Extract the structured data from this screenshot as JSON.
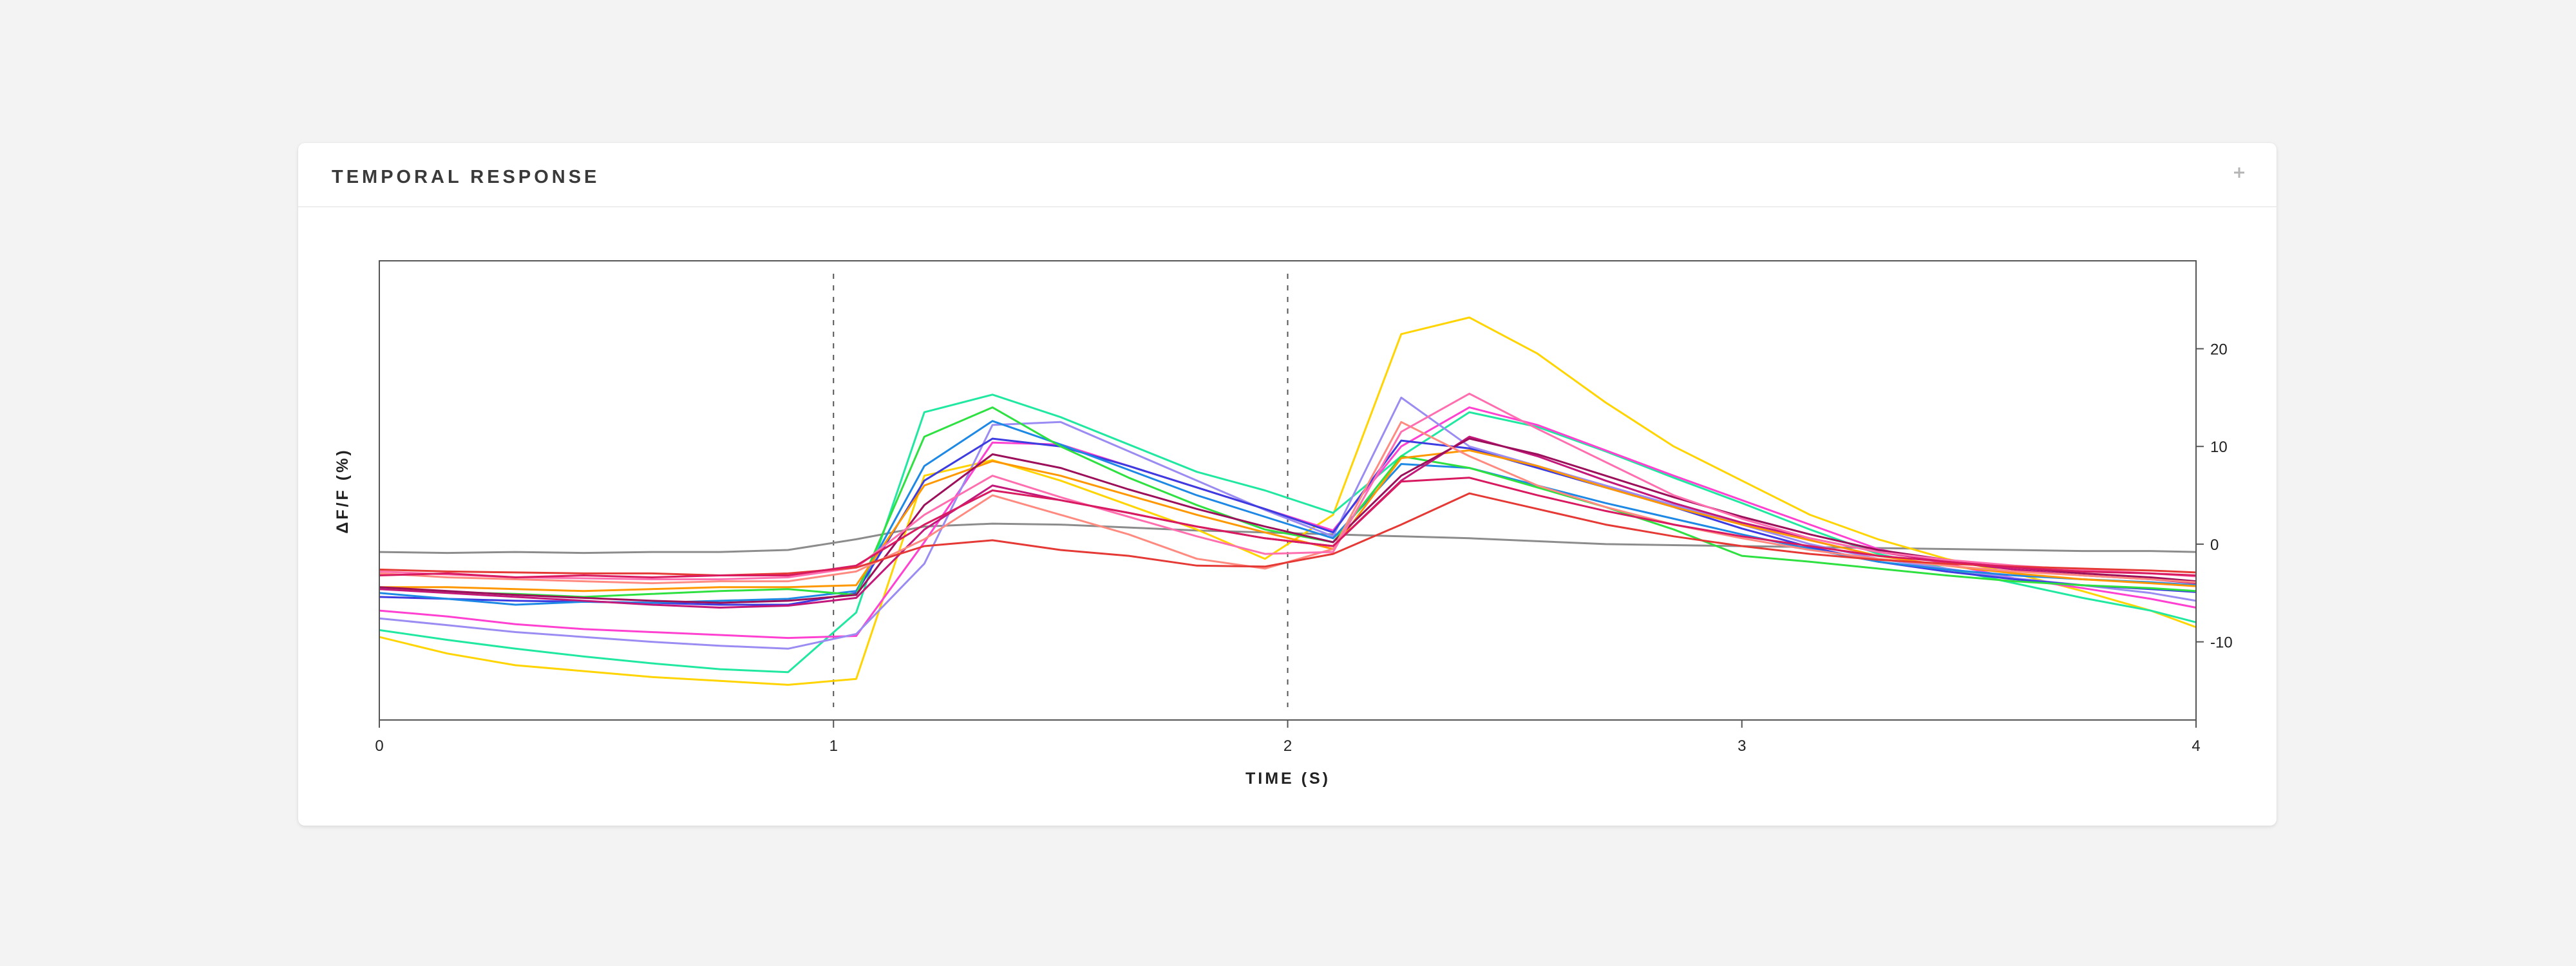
{
  "panel": {
    "title": "TEMPORAL RESPONSE",
    "expand_icon": "plus-icon"
  },
  "chart_data": {
    "type": "line",
    "xlabel": "TIME (S)",
    "ylabel": "ΔF/F (%)",
    "xlim": [
      0,
      4
    ],
    "ylim": [
      -18,
      29
    ],
    "x_ticks": [
      0,
      1,
      2,
      3,
      4
    ],
    "y_ticks": [
      -10,
      0,
      10,
      20
    ],
    "y_axis_side": "right",
    "grid": false,
    "stimulus_markers": [
      1,
      2
    ],
    "x": [
      0,
      0.15,
      0.3,
      0.45,
      0.6,
      0.75,
      0.9,
      1.05,
      1.2,
      1.35,
      1.5,
      1.65,
      1.8,
      1.95,
      2.1,
      2.25,
      2.4,
      2.55,
      2.7,
      2.85,
      3.0,
      3.15,
      3.3,
      3.45,
      3.6,
      3.75,
      3.9,
      4.0
    ],
    "series": [
      {
        "color": "#8c8c8c",
        "values": [
          -0.8,
          -0.9,
          -0.8,
          -0.9,
          -0.8,
          -0.8,
          -0.6,
          0.5,
          1.8,
          2.1,
          2.0,
          1.7,
          1.4,
          1.2,
          1.0,
          0.8,
          0.6,
          0.3,
          0.0,
          -0.1,
          -0.2,
          -0.3,
          -0.4,
          -0.5,
          -0.6,
          -0.7,
          -0.7,
          -0.8
        ]
      },
      {
        "color": "#ffd400",
        "values": [
          -9.5,
          -11.2,
          -12.4,
          -13.0,
          -13.6,
          -14.0,
          -14.4,
          -13.8,
          7.0,
          8.6,
          6.5,
          4.0,
          1.5,
          -1.5,
          3.0,
          21.5,
          23.2,
          19.5,
          14.5,
          10.0,
          6.5,
          3.0,
          0.5,
          -1.5,
          -3.0,
          -4.8,
          -6.8,
          -8.5
        ]
      },
      {
        "color": "#20e8a0",
        "values": [
          -8.8,
          -9.8,
          -10.7,
          -11.5,
          -12.2,
          -12.8,
          -13.1,
          -7.0,
          13.5,
          15.3,
          13.0,
          10.2,
          7.4,
          5.5,
          3.2,
          9.0,
          13.5,
          12.0,
          9.5,
          6.8,
          4.2,
          1.5,
          -1.0,
          -2.5,
          -4.0,
          -5.5,
          -6.8,
          -8.0
        ]
      },
      {
        "color": "#ff40d0",
        "values": [
          -6.8,
          -7.4,
          -8.2,
          -8.7,
          -9.0,
          -9.3,
          -9.6,
          -9.4,
          0.2,
          10.4,
          10.2,
          8.0,
          5.8,
          3.6,
          1.4,
          10.0,
          14.0,
          12.2,
          9.6,
          7.0,
          4.5,
          2.0,
          -0.5,
          -2.0,
          -3.5,
          -4.5,
          -5.6,
          -6.5
        ]
      },
      {
        "color": "#9a8cf2",
        "values": [
          -7.6,
          -8.3,
          -9.0,
          -9.5,
          -10.0,
          -10.4,
          -10.7,
          -9.2,
          -2.0,
          12.2,
          12.5,
          9.5,
          6.5,
          3.5,
          0.8,
          15.0,
          10.0,
          8.0,
          6.0,
          4.0,
          2.0,
          0.0,
          -1.5,
          -2.5,
          -3.5,
          -4.2,
          -5.0,
          -5.8
        ]
      },
      {
        "color": "#3c3ce0",
        "values": [
          -5.4,
          -5.6,
          -5.8,
          -5.9,
          -6.0,
          -6.2,
          -6.2,
          -5.0,
          6.5,
          10.8,
          10.0,
          8.0,
          5.8,
          3.6,
          1.2,
          10.6,
          9.8,
          7.8,
          5.8,
          3.8,
          1.6,
          -0.3,
          -1.8,
          -2.8,
          -3.6,
          -4.2,
          -4.6,
          -4.9
        ]
      },
      {
        "color": "#1e88e5",
        "values": [
          -5.0,
          -5.6,
          -6.2,
          -5.9,
          -6.0,
          -5.8,
          -5.6,
          -4.8,
          8.0,
          12.6,
          10.2,
          7.6,
          5.0,
          2.8,
          0.6,
          8.2,
          7.8,
          6.0,
          4.2,
          2.6,
          1.0,
          -0.5,
          -1.8,
          -2.6,
          -3.2,
          -3.6,
          -3.9,
          -4.2
        ]
      },
      {
        "color": "#2ee040",
        "values": [
          -4.6,
          -4.9,
          -5.1,
          -5.4,
          -5.1,
          -4.8,
          -4.6,
          -5.2,
          11.0,
          14.0,
          10.0,
          6.8,
          4.0,
          1.5,
          0.2,
          9.0,
          7.8,
          5.8,
          3.8,
          1.5,
          -1.2,
          -1.8,
          -2.5,
          -3.2,
          -3.8,
          -4.2,
          -4.5,
          -4.8
        ]
      },
      {
        "color": "#ff9800",
        "values": [
          -4.4,
          -4.4,
          -4.6,
          -4.8,
          -4.6,
          -4.4,
          -4.4,
          -4.2,
          6.0,
          8.5,
          7.0,
          5.0,
          3.0,
          1.2,
          -0.5,
          8.8,
          9.6,
          8.0,
          5.8,
          3.8,
          2.0,
          0.4,
          -1.2,
          -2.2,
          -3.0,
          -3.6,
          -4.0,
          -4.3
        ]
      },
      {
        "color": "#c2187a",
        "values": [
          -4.6,
          -5.0,
          -5.4,
          -5.8,
          -6.2,
          -6.5,
          -6.3,
          -5.5,
          1.5,
          6.0,
          4.5,
          3.2,
          1.8,
          0.6,
          -0.2,
          6.5,
          11.0,
          9.0,
          6.5,
          4.2,
          2.2,
          0.6,
          -0.8,
          -1.8,
          -2.6,
          -3.2,
          -3.6,
          -4.0
        ]
      },
      {
        "color": "#9c0f5a",
        "values": [
          -4.4,
          -4.8,
          -5.2,
          -5.5,
          -5.8,
          -6.0,
          -5.8,
          -5.2,
          4.0,
          9.2,
          7.8,
          5.6,
          3.6,
          1.8,
          0.2,
          7.0,
          10.8,
          9.2,
          7.0,
          4.8,
          2.8,
          1.0,
          -0.6,
          -1.6,
          -2.4,
          -3.0,
          -3.4,
          -3.8
        ]
      },
      {
        "color": "#ff8a80",
        "values": [
          -3.0,
          -3.4,
          -3.6,
          -3.8,
          -4.0,
          -3.8,
          -3.8,
          -2.8,
          0.5,
          5.0,
          3.0,
          1.0,
          -1.5,
          -2.5,
          -0.5,
          12.5,
          9.0,
          6.0,
          3.8,
          2.0,
          0.6,
          -0.6,
          -1.5,
          -2.2,
          -2.8,
          -3.2,
          -3.6,
          -3.9
        ]
      },
      {
        "color": "#ff6fb0",
        "values": [
          -2.8,
          -3.1,
          -3.4,
          -3.5,
          -3.6,
          -3.6,
          -3.4,
          -2.4,
          3.0,
          7.0,
          4.8,
          2.8,
          0.8,
          -1.0,
          -0.8,
          11.5,
          15.4,
          11.8,
          8.4,
          5.0,
          2.6,
          0.6,
          -0.8,
          -1.6,
          -2.2,
          -2.6,
          -3.0,
          -3.3
        ]
      },
      {
        "color": "#e53935",
        "values": [
          -2.6,
          -2.8,
          -2.9,
          -3.0,
          -3.0,
          -3.2,
          -3.0,
          -2.4,
          -0.2,
          0.4,
          -0.6,
          -1.2,
          -2.2,
          -2.3,
          -1.0,
          2.0,
          5.2,
          3.6,
          2.0,
          0.8,
          -0.2,
          -1.0,
          -1.6,
          -2.0,
          -2.3,
          -2.5,
          -2.7,
          -2.9
        ]
      },
      {
        "color": "#d81b60",
        "values": [
          -3.2,
          -3.0,
          -3.4,
          -3.2,
          -3.4,
          -3.2,
          -3.2,
          -2.2,
          2.0,
          5.5,
          4.5,
          3.2,
          1.8,
          0.6,
          -0.2,
          6.4,
          6.8,
          5.0,
          3.4,
          2.0,
          0.8,
          -0.2,
          -1.2,
          -1.8,
          -2.4,
          -2.8,
          -3.0,
          -3.2
        ]
      }
    ]
  }
}
